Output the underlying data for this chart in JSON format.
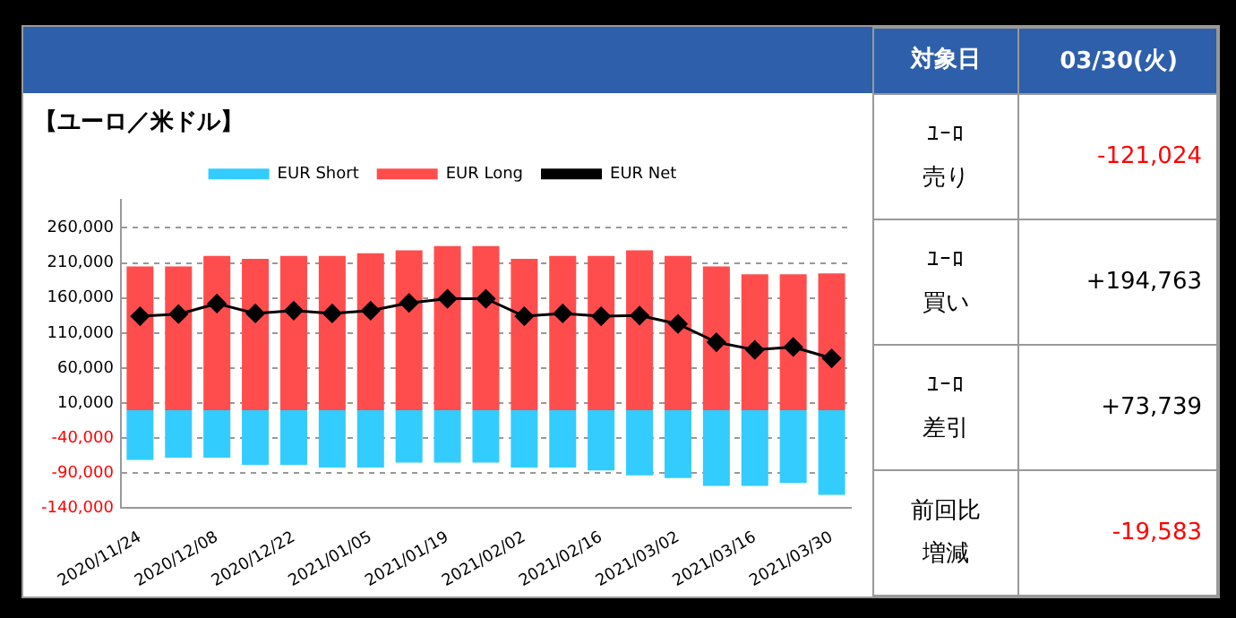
{
  "chart_data": [
    {
      "type": "bar",
      "title": "【ユーロ／米ドル】",
      "categories": [
        "2020/11/24",
        null,
        "2020/12/08",
        null,
        "2020/12/22",
        null,
        "2021/01/05",
        null,
        "2021/01/19",
        null,
        "2021/02/02",
        null,
        "2021/02/16",
        null,
        "2021/03/02",
        null,
        "2021/03/16",
        null,
        "2021/03/30"
      ],
      "stacked": true,
      "series": [
        {
          "name": "EUR Short",
          "color": "#33ccff",
          "values": [
            -71000,
            -68000,
            -68000,
            -78000,
            -78000,
            -82000,
            -82000,
            -75000,
            -75000,
            -75000,
            -82000,
            -82000,
            -86000,
            -93000,
            -97000,
            -108000,
            -108000,
            -104000,
            -121000
          ]
        },
        {
          "name": "EUR Long",
          "color": "#ff4d4d",
          "values": [
            205000,
            205000,
            220000,
            216000,
            220000,
            220000,
            224000,
            228000,
            234000,
            234000,
            216000,
            220000,
            220000,
            228000,
            220000,
            205000,
            194000,
            194000,
            195000
          ]
        },
        {
          "name": "EUR Net",
          "type": "line",
          "color": "#000000",
          "marker": "diamond",
          "values": [
            134000,
            137000,
            152000,
            138000,
            142000,
            138000,
            142000,
            153000,
            159000,
            159000,
            134000,
            138000,
            134000,
            135000,
            123000,
            97000,
            86000,
            90000,
            74000
          ]
        }
      ],
      "ylim": [
        -140000,
        300000
      ],
      "yticks": [
        {
          "value": -140000,
          "label": "-140,000"
        },
        {
          "value": -90000,
          "label": "-90,000"
        },
        {
          "value": -40000,
          "label": "-40,000"
        },
        {
          "value": 10000,
          "label": "10,000"
        },
        {
          "value": 60000,
          "label": "60,000"
        },
        {
          "value": 110000,
          "label": "110,000"
        },
        {
          "value": 160000,
          "label": "160,000"
        },
        {
          "value": 210000,
          "label": "210,000"
        },
        {
          "value": 260000,
          "label": "260,000"
        }
      ],
      "grid": "y",
      "legend": "top"
    },
    {
      "type": "other",
      "annotations": [
        "対象日",
        "03/30(火)",
        "ﾕｰﾛ",
        "売り",
        "-121,024",
        "ﾕｰﾛ",
        "買い",
        "+194,763",
        "ﾕｰﾛ",
        "差引",
        "+73,739",
        "前回比",
        "増減",
        "-19,583"
      ]
    }
  ]
}
